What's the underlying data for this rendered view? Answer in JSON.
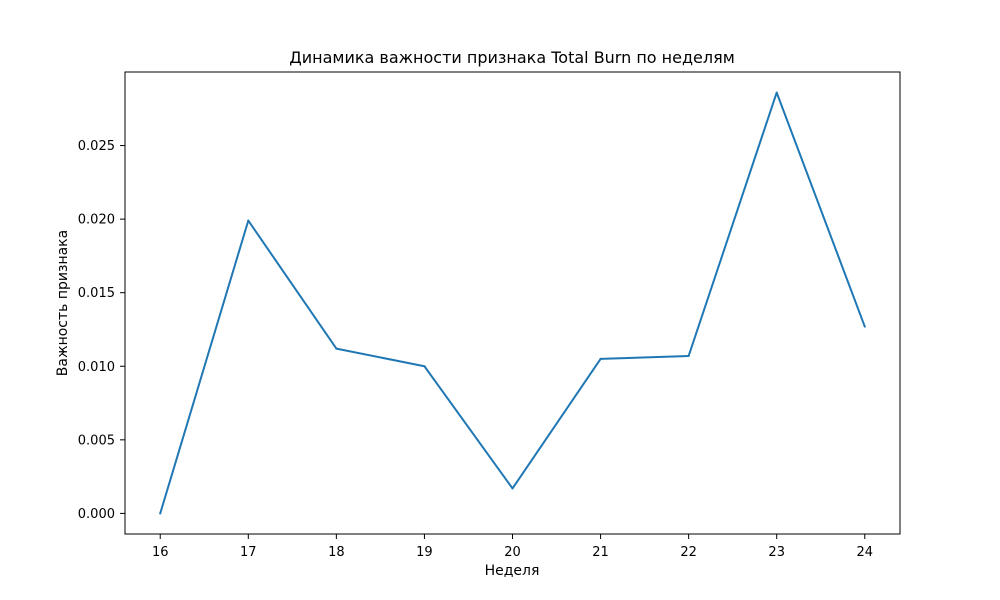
{
  "chart_data": {
    "type": "line",
    "title": "Динамика важности признака Total Burn по неделям",
    "xlabel": "Неделя",
    "ylabel": "Важность признака",
    "x": [
      16,
      17,
      18,
      19,
      20,
      21,
      22,
      23,
      24
    ],
    "series": [
      {
        "values": [
          0.0,
          0.0199,
          0.0112,
          0.01,
          0.0017,
          0.0105,
          0.0107,
          0.0286,
          0.0127
        ],
        "color": "#1f77b4"
      }
    ],
    "xticks": [
      "16",
      "17",
      "18",
      "19",
      "20",
      "21",
      "22",
      "23",
      "24"
    ],
    "yticks": [
      "0.000",
      "0.005",
      "0.010",
      "0.015",
      "0.020",
      "0.025"
    ],
    "xlim": [
      15.6,
      24.4
    ],
    "ylim": [
      -0.0014,
      0.03
    ],
    "grid": false,
    "legend": "none"
  }
}
